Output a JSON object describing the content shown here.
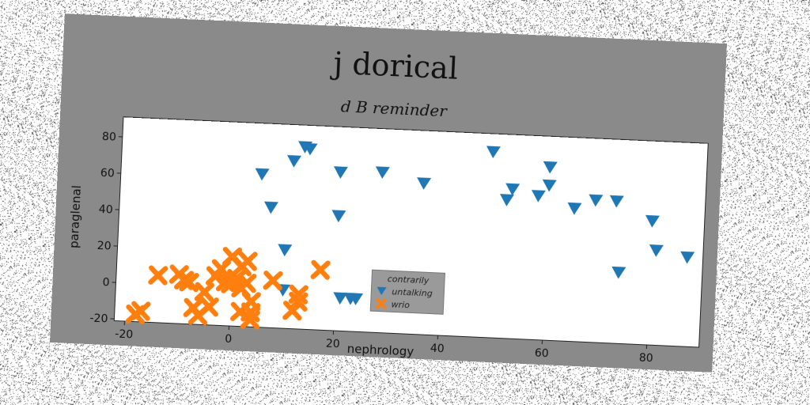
{
  "chart_data": {
    "type": "scatter",
    "title": "j dorical",
    "subtitle": "d B reminder",
    "xlabel": "nephrology",
    "ylabel": "paraglenal",
    "xlim": [
      -22,
      90
    ],
    "ylim": [
      -21,
      91
    ],
    "xticks": [
      -20,
      0,
      20,
      40,
      60,
      80
    ],
    "yticks": [
      -20,
      0,
      20,
      40,
      60,
      80
    ],
    "grid": false,
    "legend": {
      "title": "contrarily",
      "placement": "lower-center"
    },
    "series": [
      {
        "name": "untalking",
        "marker": "triangle-down",
        "color": "#1f77b4",
        "points": [
          [
            5,
            63
          ],
          [
            7,
            45
          ],
          [
            10,
            22
          ],
          [
            10,
            0
          ],
          [
            11,
            71
          ],
          [
            13,
            79
          ],
          [
            14,
            78
          ],
          [
            20,
            66
          ],
          [
            20,
            42
          ],
          [
            21,
            -3
          ],
          [
            23,
            -3
          ],
          [
            24,
            -3
          ],
          [
            28,
            67
          ],
          [
            33,
            -1
          ],
          [
            36,
            62
          ],
          [
            49,
            81
          ],
          [
            52,
            55
          ],
          [
            53,
            61
          ],
          [
            58,
            58
          ],
          [
            60,
            74
          ],
          [
            60,
            64
          ],
          [
            65,
            52
          ],
          [
            69,
            57
          ],
          [
            73,
            57
          ],
          [
            74,
            18
          ],
          [
            80,
            47
          ],
          [
            81,
            31
          ],
          [
            87,
            28
          ]
        ]
      },
      {
        "name": "wrio",
        "marker": "x",
        "color": "#ff7f0e",
        "points": [
          [
            -18,
            -17
          ],
          [
            -17,
            -15
          ],
          [
            -14,
            5
          ],
          [
            -10,
            6
          ],
          [
            -9,
            3
          ],
          [
            -8,
            2
          ],
          [
            -7,
            -12
          ],
          [
            -6,
            -16
          ],
          [
            -5,
            -3
          ],
          [
            -4,
            -11
          ],
          [
            -3,
            6
          ],
          [
            -2,
            10
          ],
          [
            -1,
            3
          ],
          [
            0,
            2
          ],
          [
            0,
            17
          ],
          [
            1,
            5
          ],
          [
            2,
            0
          ],
          [
            2,
            12
          ],
          [
            2,
            -13
          ],
          [
            3,
            15
          ],
          [
            3,
            3
          ],
          [
            4,
            -7
          ],
          [
            4,
            -13
          ],
          [
            4,
            -17
          ],
          [
            8,
            5
          ],
          [
            12,
            -11
          ],
          [
            13,
            -6
          ],
          [
            13,
            -2
          ],
          [
            17,
            12
          ]
        ]
      }
    ]
  }
}
